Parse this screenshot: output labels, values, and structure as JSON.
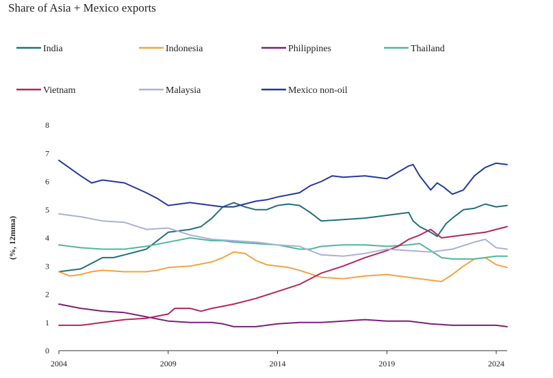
{
  "chart_data": {
    "type": "line",
    "title": "Share of Asia + Mexico exports",
    "xlabel": "",
    "ylabel": "(%, 12mma)",
    "ylim": [
      0,
      8
    ],
    "xlim": [
      2004,
      2024.5
    ],
    "x_ticks": [
      "2004",
      "2009",
      "2014",
      "2019",
      "2024"
    ],
    "y_ticks": [
      "0",
      "1",
      "2",
      "3",
      "4",
      "5",
      "6",
      "7",
      "8"
    ],
    "grid": false,
    "legend_position": "top",
    "series": [
      {
        "name": "India",
        "color": "#1f6f7a",
        "x": [
          2004,
          2005,
          2006,
          2006.5,
          2007,
          2008,
          2009,
          2010,
          2010.5,
          2011,
          2011.5,
          2012,
          2012.5,
          2013,
          2013.5,
          2014,
          2014.5,
          2015,
          2015.5,
          2016,
          2017,
          2018,
          2019,
          2020,
          2020.2,
          2020.5,
          2021,
          2021.3,
          2021.7,
          2022,
          2022.5,
          2023,
          2023.5,
          2024,
          2024.5
        ],
        "y": [
          2.8,
          2.9,
          3.3,
          3.3,
          3.4,
          3.6,
          4.2,
          4.3,
          4.4,
          4.7,
          5.1,
          5.25,
          5.1,
          5.0,
          5.0,
          5.15,
          5.2,
          5.15,
          4.9,
          4.6,
          4.65,
          4.7,
          4.8,
          4.9,
          4.6,
          4.4,
          4.2,
          4.05,
          4.5,
          4.7,
          5.0,
          5.05,
          5.2,
          5.1,
          5.15
        ]
      },
      {
        "name": "Indonesia",
        "color": "#f4a23d",
        "x": [
          2004,
          2004.5,
          2005,
          2005.5,
          2006,
          2007,
          2008,
          2008.5,
          2009,
          2010,
          2011,
          2011.5,
          2012,
          2012.5,
          2013,
          2013.5,
          2014,
          2014.5,
          2015,
          2016,
          2017,
          2018,
          2019,
          2020,
          2021,
          2021.5,
          2022,
          2022.5,
          2023,
          2023.5,
          2024,
          2024.5
        ],
        "y": [
          2.8,
          2.65,
          2.7,
          2.8,
          2.85,
          2.8,
          2.8,
          2.85,
          2.95,
          3.0,
          3.15,
          3.3,
          3.5,
          3.45,
          3.2,
          3.05,
          3.0,
          2.95,
          2.85,
          2.6,
          2.55,
          2.65,
          2.7,
          2.6,
          2.5,
          2.45,
          2.7,
          3.0,
          3.25,
          3.3,
          3.05,
          2.95
        ]
      },
      {
        "name": "Philippines",
        "color": "#7a1f78",
        "x": [
          2004,
          2005,
          2006,
          2007,
          2008,
          2009,
          2010,
          2011,
          2011.5,
          2012,
          2013,
          2014,
          2015,
          2016,
          2017,
          2018,
          2019,
          2020,
          2021,
          2022,
          2023,
          2024,
          2024.5
        ],
        "y": [
          1.65,
          1.5,
          1.4,
          1.35,
          1.2,
          1.05,
          1.0,
          1.0,
          0.95,
          0.85,
          0.85,
          0.95,
          1.0,
          1.0,
          1.05,
          1.1,
          1.05,
          1.05,
          0.95,
          0.9,
          0.9,
          0.9,
          0.85
        ]
      },
      {
        "name": "Thailand",
        "color": "#4db89a",
        "x": [
          2004,
          2005,
          2006,
          2007,
          2008,
          2009,
          2010,
          2010.5,
          2011,
          2011.5,
          2012,
          2013,
          2014,
          2015,
          2015.5,
          2016,
          2017,
          2018,
          2019,
          2020,
          2020.5,
          2021,
          2021.5,
          2022,
          2023,
          2024,
          2024.5
        ],
        "y": [
          3.75,
          3.65,
          3.6,
          3.6,
          3.7,
          3.85,
          4.0,
          3.95,
          3.9,
          3.9,
          3.85,
          3.8,
          3.75,
          3.6,
          3.6,
          3.7,
          3.75,
          3.75,
          3.7,
          3.75,
          3.8,
          3.55,
          3.3,
          3.25,
          3.25,
          3.35,
          3.35
        ]
      },
      {
        "name": "Vietnam",
        "color": "#b5245a",
        "x": [
          2004,
          2005,
          2006,
          2007,
          2008,
          2009,
          2009.3,
          2009.8,
          2010,
          2010.5,
          2011,
          2012,
          2013,
          2014,
          2015,
          2016,
          2017,
          2018,
          2019,
          2019.5,
          2020,
          2020.5,
          2021,
          2021.5,
          2022,
          2023,
          2023.5,
          2024,
          2024.5
        ],
        "y": [
          0.9,
          0.9,
          1.0,
          1.1,
          1.15,
          1.3,
          1.5,
          1.5,
          1.5,
          1.4,
          1.5,
          1.65,
          1.85,
          2.1,
          2.35,
          2.75,
          3.0,
          3.3,
          3.55,
          3.7,
          3.95,
          4.1,
          4.3,
          4.0,
          4.05,
          4.15,
          4.2,
          4.3,
          4.4
        ]
      },
      {
        "name": "Malaysia",
        "color": "#a9b0d8",
        "x": [
          2004,
          2005,
          2006,
          2007,
          2008,
          2009,
          2010,
          2011,
          2012,
          2013,
          2014,
          2015,
          2016,
          2017,
          2018,
          2019,
          2020,
          2021,
          2022,
          2023,
          2023.5,
          2024,
          2024.5
        ],
        "y": [
          4.85,
          4.75,
          4.6,
          4.55,
          4.3,
          4.35,
          4.1,
          3.95,
          3.9,
          3.85,
          3.75,
          3.7,
          3.4,
          3.35,
          3.45,
          3.6,
          3.55,
          3.5,
          3.6,
          3.85,
          3.95,
          3.65,
          3.6
        ]
      },
      {
        "name": "Mexico non-oil",
        "color": "#23379e",
        "x": [
          2004,
          2005,
          2005.5,
          2006,
          2007,
          2008,
          2008.5,
          2009,
          2010,
          2011,
          2011.5,
          2012,
          2013,
          2013.5,
          2014,
          2015,
          2015.5,
          2016,
          2016.5,
          2017,
          2018,
          2019,
          2020,
          2020.2,
          2020.5,
          2021,
          2021.3,
          2021.6,
          2022,
          2022.5,
          2023,
          2023.5,
          2024,
          2024.5
        ],
        "y": [
          6.75,
          6.2,
          5.95,
          6.05,
          5.95,
          5.6,
          5.4,
          5.15,
          5.25,
          5.15,
          5.1,
          5.1,
          5.3,
          5.35,
          5.45,
          5.6,
          5.85,
          6.0,
          6.2,
          6.15,
          6.2,
          6.1,
          6.55,
          6.6,
          6.2,
          5.7,
          5.95,
          5.8,
          5.55,
          5.7,
          6.2,
          6.5,
          6.65,
          6.6
        ]
      }
    ]
  }
}
